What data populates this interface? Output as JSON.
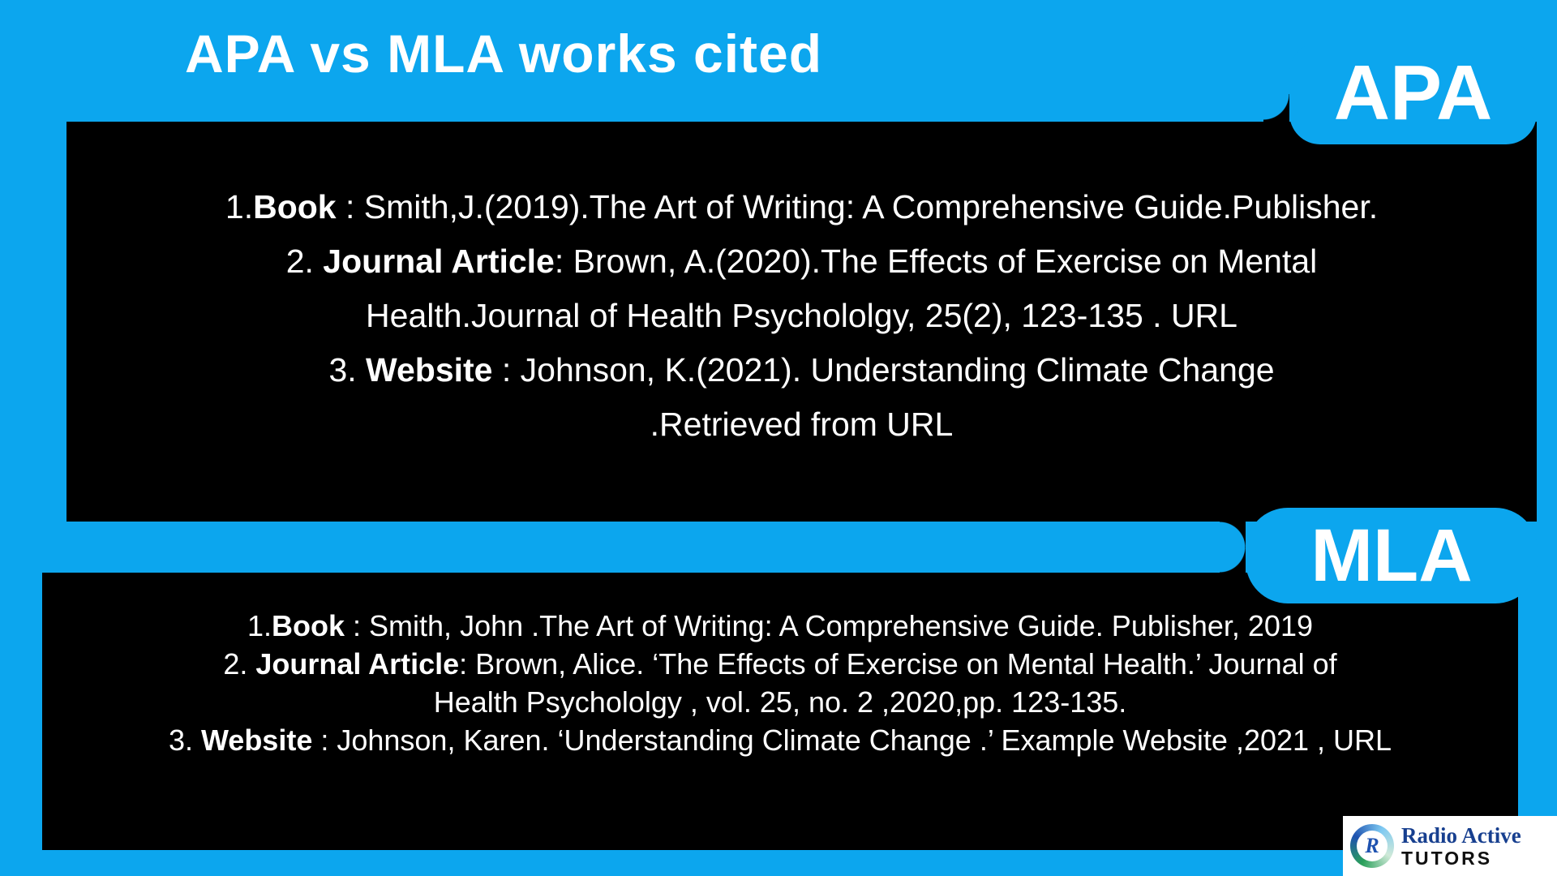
{
  "page": {
    "title": "APA vs MLA works cited",
    "background_color": "#0ca6ee",
    "panel_color": "#000000",
    "text_color": "#ffffff"
  },
  "apa": {
    "label": "APA",
    "lines": [
      [
        {
          "t": "1."
        },
        {
          "t": "Book",
          "b": true
        },
        {
          "t": " : Smith,J.(2019).The Art of Writing: A Comprehensive Guide.Publisher."
        }
      ],
      [
        {
          "t": "2. "
        },
        {
          "t": "Journal Article",
          "b": true
        },
        {
          "t": ": Brown, A.(2020).The Effects of Exercise on Mental"
        }
      ],
      [
        {
          "t": "Health.Journal of Health Psychololgy, 25(2), 123-135 . URL"
        }
      ],
      [
        {
          "t": "3. "
        },
        {
          "t": "Website",
          "b": true
        },
        {
          "t": " : Johnson, K.(2021). Understanding Climate Change"
        }
      ],
      [
        {
          "t": ".Retrieved from URL"
        }
      ]
    ]
  },
  "mla": {
    "label": "MLA",
    "lines": [
      [
        {
          "t": "1."
        },
        {
          "t": "Book",
          "b": true
        },
        {
          "t": " : Smith, John .The Art of Writing: A Comprehensive Guide. Publisher, 2019"
        }
      ],
      [
        {
          "t": "2. "
        },
        {
          "t": "Journal Article",
          "b": true
        },
        {
          "t": ": Brown, Alice. ‘The Effects of Exercise on Mental Health.’ Journal of"
        }
      ],
      [
        {
          "t": "Health Psychololgy , vol. 25, no. 2 ,2020,pp. 123-135."
        }
      ],
      [
        {
          "t": "3. "
        },
        {
          "t": "Website",
          "b": true
        },
        {
          "t": " : Johnson, Karen. ‘Understanding Climate Change .’ Example Website ,2021 , URL"
        }
      ]
    ]
  },
  "logo": {
    "monogram": "R",
    "brand_top": "Radio Active",
    "brand_bottom": "TUTORS",
    "brand_color": "#173f8f"
  }
}
